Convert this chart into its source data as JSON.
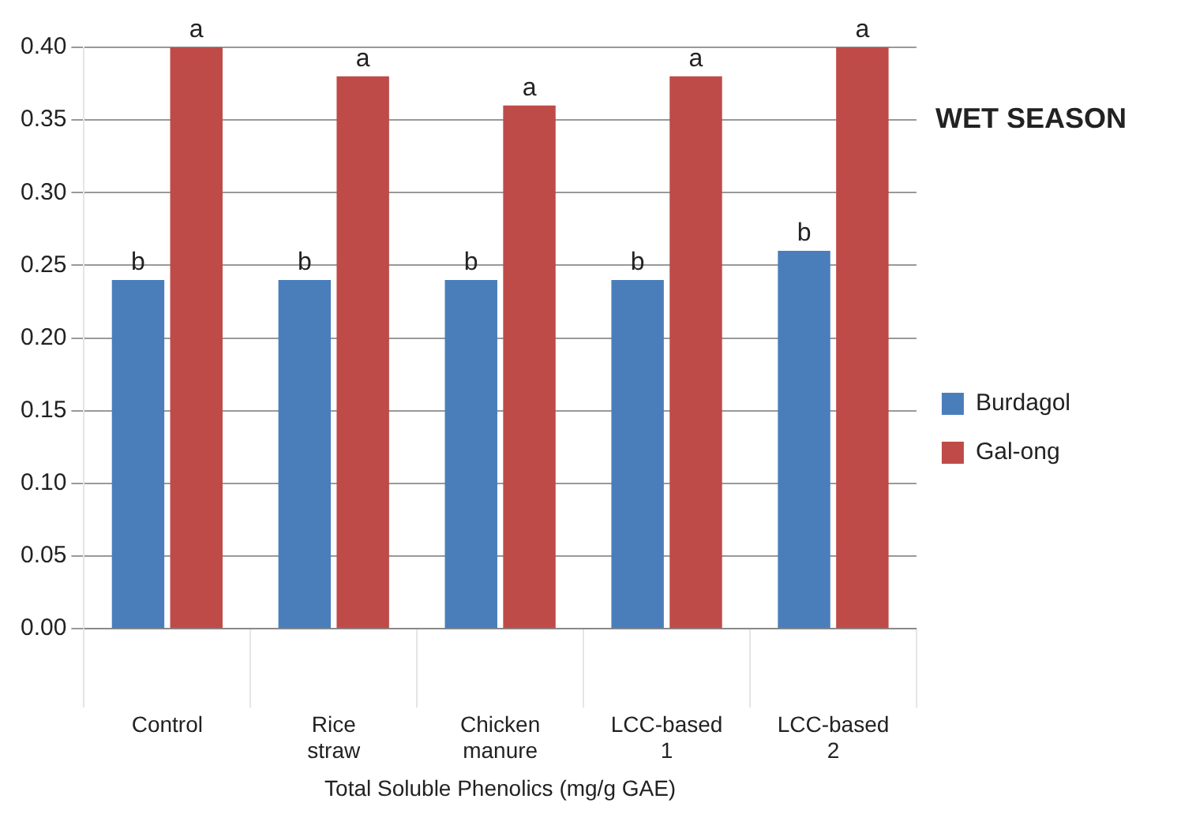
{
  "chart_data": {
    "type": "bar",
    "title": "WET SEASON",
    "xlabel": "Total Soluble Phenolics (mg/g GAE)",
    "categories": [
      "Control",
      "Rice straw",
      "Chicken manure",
      "LCC-based 1",
      "LCC-based 2"
    ],
    "series": [
      {
        "name": "Burdagol",
        "color": "#4a7ebb",
        "values": [
          0.24,
          0.24,
          0.24,
          0.24,
          0.26
        ],
        "value_labels": [
          "b",
          "b",
          "b",
          "b",
          "b"
        ]
      },
      {
        "name": "Gal-ong",
        "color": "#be4b48",
        "values": [
          0.4,
          0.38,
          0.36,
          0.38,
          0.4
        ],
        "value_labels": [
          "a",
          "a",
          "a",
          "a",
          "a"
        ]
      }
    ],
    "ylim": [
      0,
      0.4
    ],
    "yticks": [
      {
        "value": 0,
        "label": "0.00"
      },
      {
        "value": 0.05,
        "label": "0.05"
      },
      {
        "value": 0.1,
        "label": "0.10"
      },
      {
        "value": 0.15,
        "label": "0.15"
      },
      {
        "value": 0.2,
        "label": "0.20"
      },
      {
        "value": 0.25,
        "label": "0.25"
      },
      {
        "value": 0.3,
        "label": "0.30"
      },
      {
        "value": 0.35,
        "label": "0.35"
      },
      {
        "value": 0.4,
        "label": "0.40"
      }
    ],
    "grid": "y",
    "legend": "right"
  }
}
